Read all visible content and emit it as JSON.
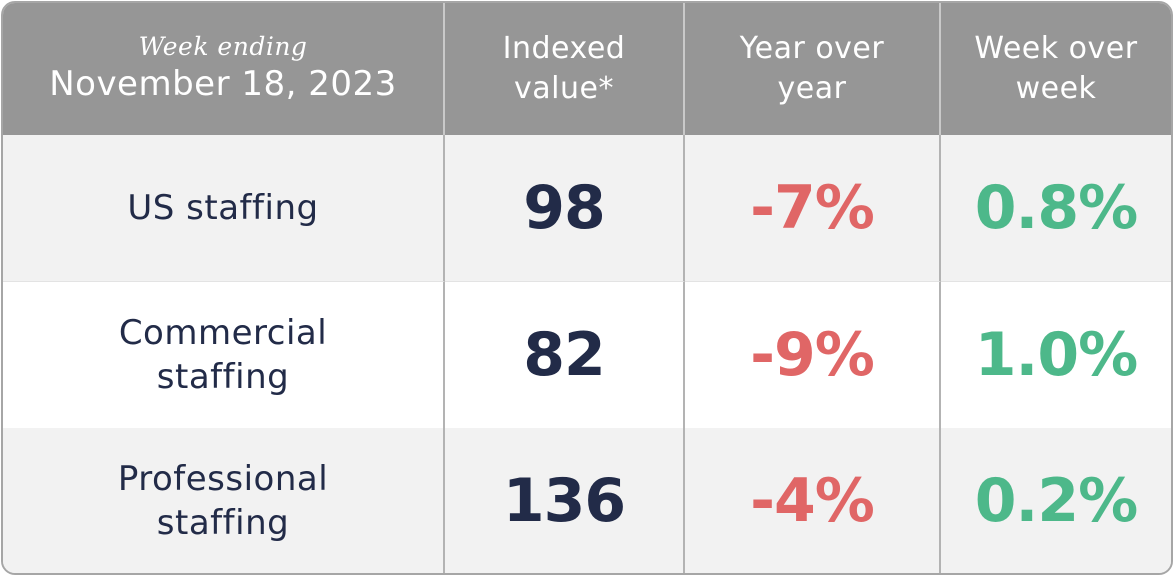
{
  "header": {
    "week_caption": "Week ending",
    "week_date": "November 18, 2023",
    "col_index_line1": "Indexed",
    "col_index_line2": "value*",
    "col_yoy_line1": "Year over",
    "col_yoy_line2": "year",
    "col_wow_line1": "Week over",
    "col_wow_line2": "week"
  },
  "chart_data": {
    "type": "table",
    "title": "",
    "columns": [
      "Week ending November 18, 2023",
      "Indexed value*",
      "Year over year",
      "Week over week"
    ],
    "rows": [
      {
        "label_line1": "US staffing",
        "label_line2": "",
        "indexed_value": "98",
        "yoy": "-7%",
        "wow": "0.8%"
      },
      {
        "label_line1": "Commercial",
        "label_line2": "staffing",
        "indexed_value": "82",
        "yoy": "-9%",
        "wow": "1.0%"
      },
      {
        "label_line1": "Professional",
        "label_line2": "staffing",
        "indexed_value": "136",
        "yoy": "-4%",
        "wow": "0.2%"
      }
    ]
  },
  "colors": {
    "header_bg": "#969696",
    "label_text": "#222b48",
    "negative": "#e06666",
    "positive": "#4db88a"
  }
}
